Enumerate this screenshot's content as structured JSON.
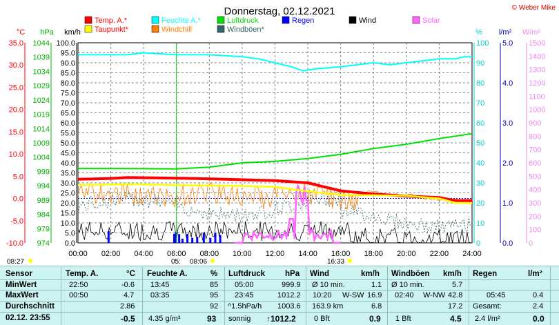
{
  "title": "Donnerstag, 02.12.2021",
  "copyright": "© Weber Mike",
  "colors": {
    "temp": "#ff0000",
    "dew": "#ffff00",
    "hum": "#00ffff",
    "windchill": "#ff8000",
    "press": "#00e000",
    "gust": "#336666",
    "rain": "#0000ff",
    "wind": "#000000",
    "solar": "#ff66ff"
  },
  "legend": [
    {
      "label": "Temp. A.*",
      "color": "#ff0000",
      "col": 0,
      "row": 0
    },
    {
      "label": "Feuchte A.*",
      "color": "#00ffff",
      "col": 1,
      "row": 0
    },
    {
      "label": "Luftdruck",
      "color": "#00e000",
      "col": 2,
      "row": 0
    },
    {
      "label": "Regen",
      "color": "#0000ff",
      "col": 3,
      "row": 0
    },
    {
      "label": "Wind",
      "color": "#000000",
      "col": 4,
      "row": 0
    },
    {
      "label": "Solar",
      "color": "#ff66ff",
      "col": 5,
      "row": 0
    },
    {
      "label": "Taupunkt*",
      "color": "#ffff00",
      "col": 0,
      "row": 1
    },
    {
      "label": "Windchill",
      "color": "#ff8000",
      "col": 1,
      "row": 1
    },
    {
      "label": "Windböen*",
      "color": "#336666",
      "col": 2,
      "row": 1
    }
  ],
  "chart_data": {
    "type": "line",
    "title": "Donnerstag, 02.12.2021",
    "x_range": [
      "00:00",
      "24:00"
    ],
    "x_ticks": [
      "00:00",
      "02:00",
      "04:00",
      "06:00",
      "08:00",
      "10:00",
      "12:00",
      "14:00",
      "16:00",
      "18:00",
      "20:00",
      "22:00",
      "24:00"
    ],
    "axes": {
      "temp": {
        "unit": "°C",
        "range": [
          -10,
          35
        ],
        "ticks": [
          "35.0",
          "30.0",
          "25.0",
          "20.0",
          "15.0",
          "10.0",
          "5.0",
          "0.0",
          "-5.0",
          "-10.0"
        ]
      },
      "press": {
        "unit": "hPa",
        "range": [
          974,
          1044
        ],
        "ticks": [
          "1044",
          "1039",
          "1034",
          "1029",
          "1024",
          "1019",
          "1014",
          "1009",
          "1004",
          "999",
          "994",
          "989",
          "984",
          "979",
          "974"
        ]
      },
      "wind": {
        "unit": "km/h",
        "range": [
          0,
          100
        ],
        "ticks": [
          "100.0",
          "95.0",
          "90.0",
          "85.0",
          "80.0",
          "75.0",
          "70.0",
          "65.0",
          "60.0",
          "55.0",
          "50.0",
          "45.0",
          "40.0",
          "35.0",
          "30.0",
          "25.0",
          "20.0",
          "15.0",
          "10.0",
          "5.0",
          "0.0"
        ]
      },
      "hum": {
        "unit": "%",
        "range": [
          0,
          100
        ],
        "ticks": [
          "100",
          "90",
          "80",
          "70",
          "60",
          "50",
          "40",
          "30",
          "20",
          "10",
          "0"
        ]
      },
      "rain": {
        "unit": "l/m²",
        "range": [
          0,
          5
        ],
        "ticks": [
          "5.0",
          "4.0",
          "3.0",
          "2.0",
          "1.0",
          "0.0"
        ]
      },
      "solar": {
        "unit": "W/m²",
        "range": [
          0,
          1500
        ],
        "ticks": [
          "1500",
          "1400",
          "1300",
          "1200",
          "1100",
          "1000",
          "900",
          "800",
          "700",
          "600",
          "500",
          "400",
          "300",
          "200",
          "100",
          "0"
        ]
      }
    },
    "series": [
      {
        "name": "Temp. A.*",
        "axis": "temp",
        "color": "#ff0000",
        "points": [
          [
            0,
            4.3
          ],
          [
            2,
            4.5
          ],
          [
            3,
            4.7
          ],
          [
            5,
            4.6
          ],
          [
            7,
            4.5
          ],
          [
            9,
            4.3
          ],
          [
            12,
            4.0
          ],
          [
            14,
            3.5
          ],
          [
            15,
            2.6
          ],
          [
            16,
            1.7
          ],
          [
            18,
            1.0
          ],
          [
            20,
            0.5
          ],
          [
            22,
            0.2
          ],
          [
            23,
            -0.5
          ],
          [
            24,
            -0.5
          ]
        ]
      },
      {
        "name": "Taupunkt*",
        "axis": "temp",
        "color": "#ffff00",
        "points": [
          [
            0,
            3.0
          ],
          [
            3,
            3.2
          ],
          [
            6,
            3.0
          ],
          [
            8,
            2.9
          ],
          [
            10,
            2.8
          ],
          [
            12,
            2.6
          ],
          [
            14,
            1.6
          ],
          [
            16,
            0.8
          ],
          [
            18,
            0.7
          ],
          [
            20,
            0.6
          ],
          [
            22,
            0.0
          ],
          [
            23,
            -1.0
          ],
          [
            24,
            -1.1
          ]
        ]
      },
      {
        "name": "Feuchte A.*",
        "axis": "hum",
        "color": "#00ffff",
        "points": [
          [
            0,
            94
          ],
          [
            3,
            94
          ],
          [
            4,
            95
          ],
          [
            6,
            94
          ],
          [
            8,
            94
          ],
          [
            10,
            93
          ],
          [
            11,
            92
          ],
          [
            12,
            90
          ],
          [
            13,
            88
          ],
          [
            13.7,
            86
          ],
          [
            14.5,
            87
          ],
          [
            16,
            88
          ],
          [
            17,
            89
          ],
          [
            18,
            90
          ],
          [
            19,
            89
          ],
          [
            20,
            90
          ],
          [
            21,
            91
          ],
          [
            22,
            92
          ],
          [
            23,
            92
          ],
          [
            23.5,
            93
          ],
          [
            24,
            93
          ]
        ]
      },
      {
        "name": "Luftdruck",
        "axis": "press",
        "color": "#00e000",
        "points": [
          [
            0,
            1000
          ],
          [
            3,
            1000
          ],
          [
            6,
            999.9
          ],
          [
            8,
            1000.5
          ],
          [
            10,
            1002
          ],
          [
            12,
            1002.5
          ],
          [
            14,
            1003.5
          ],
          [
            16,
            1005
          ],
          [
            18,
            1007
          ],
          [
            20,
            1008.5
          ],
          [
            22,
            1010.5
          ],
          [
            24,
            1012.2
          ]
        ]
      }
    ]
  },
  "table": {
    "headers": {
      "sensor": "Sensor",
      "temp": "Temp. A.",
      "temp_unit": "°C",
      "hum": "Feuchte A.",
      "hum_unit": "%",
      "press": "Luftdruck",
      "press_unit": "hPa",
      "wind": "Wind",
      "wind_unit": "km/h",
      "gust": "Windböen",
      "gust_unit": "km/h",
      "rain": "Regen",
      "rain_unit": "l/m²"
    },
    "labels": {
      "min": "MinWert",
      "max": "MaxWert",
      "avg": "Durchschnitt",
      "now": "02.12. 23:55"
    },
    "min": {
      "temp_t": "22:50",
      "temp_v": "-0.6",
      "hum_t": "13:45",
      "hum_v": "85",
      "press_t": "05:00",
      "press_v": "999.9",
      "wind_l": "Ø 10 min.",
      "wind_v": "1.1",
      "gust_l": "Ø 10 min.",
      "gust_v": "5.7"
    },
    "max": {
      "temp_t": "00:50",
      "temp_v": "4.7",
      "hum_t": "03:35",
      "hum_v": "95",
      "press_t": "23:45",
      "press_v": "1012.2",
      "wind_t": "10:20",
      "wind_dir": "W-SW",
      "wind_v": "16.9",
      "gust_t": "02:40",
      "gust_dir": "W-NW",
      "gust_v": "42.8",
      "rain_t": "05:45",
      "rain_v": "0.4"
    },
    "avg": {
      "temp_v": "2.86",
      "hum_v": "92",
      "press_l": "^1.5hPa/h",
      "press_v": "1003.6",
      "wind_l": "163.9 km",
      "wind_v": "6.8",
      "gust_v": "17.2",
      "rain_l": "Gesamt:",
      "rain_v": "2.4"
    },
    "now": {
      "temp_v": "-0.5",
      "hum_l": "4.35 g/m³",
      "hum_v": "93",
      "press_l": "sonnig",
      "press_v": "↑1012.2",
      "wind_l": "0 Bft",
      "wind_v": "0.9",
      "gust_l": "1 Bft",
      "gust_v": "4.5",
      "rain_l": "2.4 l/m²",
      "rain_v": "0.0"
    }
  },
  "times": {
    "sunrise": "08:27",
    "dawn": "05:",
    "sunup": "08:06",
    "sunset": "16:33"
  }
}
